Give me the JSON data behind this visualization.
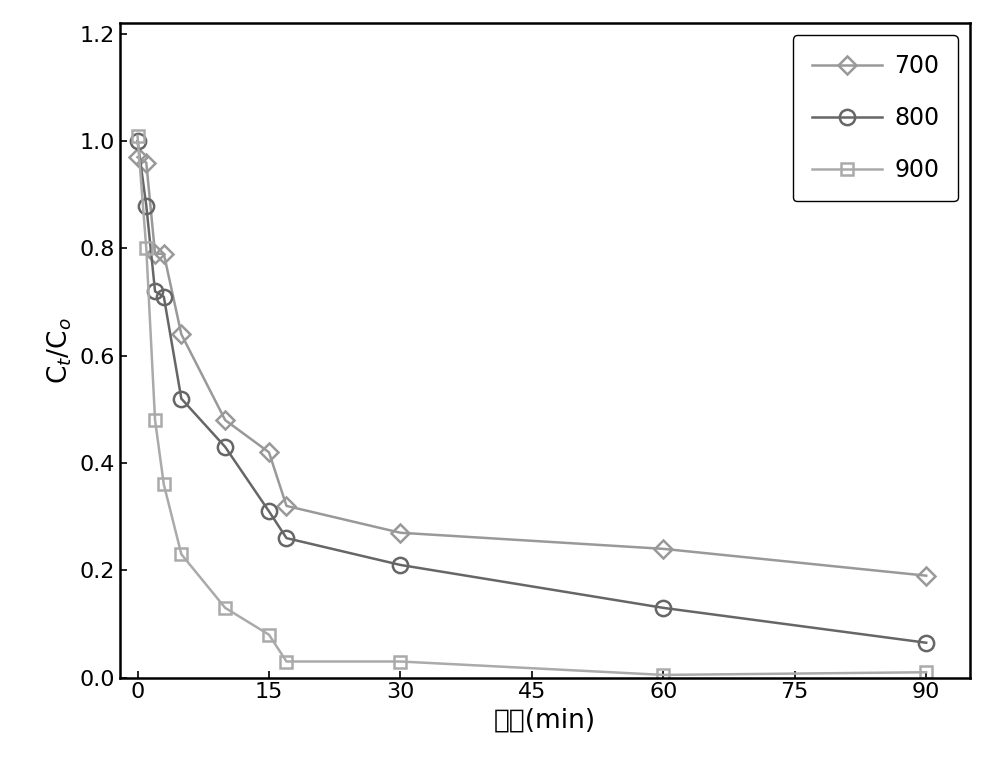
{
  "series": [
    {
      "label": "700",
      "color": "#999999",
      "marker": "D",
      "markersize": 9,
      "x": [
        0,
        1,
        2,
        3,
        5,
        10,
        15,
        17,
        30,
        60,
        90
      ],
      "y": [
        0.97,
        0.96,
        0.79,
        0.79,
        0.64,
        0.48,
        0.42,
        0.32,
        0.27,
        0.24,
        0.19
      ]
    },
    {
      "label": "800",
      "color": "#666666",
      "marker": "o",
      "markersize": 11,
      "x": [
        0,
        1,
        2,
        3,
        5,
        10,
        15,
        17,
        30,
        60,
        90
      ],
      "y": [
        1.0,
        0.88,
        0.72,
        0.71,
        0.52,
        0.43,
        0.31,
        0.26,
        0.21,
        0.13,
        0.065
      ]
    },
    {
      "label": "900",
      "color": "#aaaaaa",
      "marker": "s",
      "markersize": 9,
      "x": [
        0,
        1,
        2,
        3,
        5,
        10,
        15,
        17,
        30,
        60,
        90
      ],
      "y": [
        1.01,
        0.8,
        0.48,
        0.36,
        0.23,
        0.13,
        0.08,
        0.03,
        0.03,
        0.005,
        0.01
      ]
    }
  ],
  "xlabel": "时间(min)",
  "ylabel": "C$_t$/C$_o$",
  "xlim": [
    -2,
    95
  ],
  "ylim": [
    0,
    1.22
  ],
  "xticks": [
    0,
    15,
    30,
    45,
    60,
    75,
    90
  ],
  "yticks": [
    0,
    0.2,
    0.4,
    0.6,
    0.8,
    1.0,
    1.2
  ],
  "legend_fontsize": 17,
  "axis_label_fontsize": 19,
  "tick_fontsize": 16,
  "line_width": 1.8,
  "background_color": "#ffffff",
  "figure_facecolor": "#ffffff"
}
